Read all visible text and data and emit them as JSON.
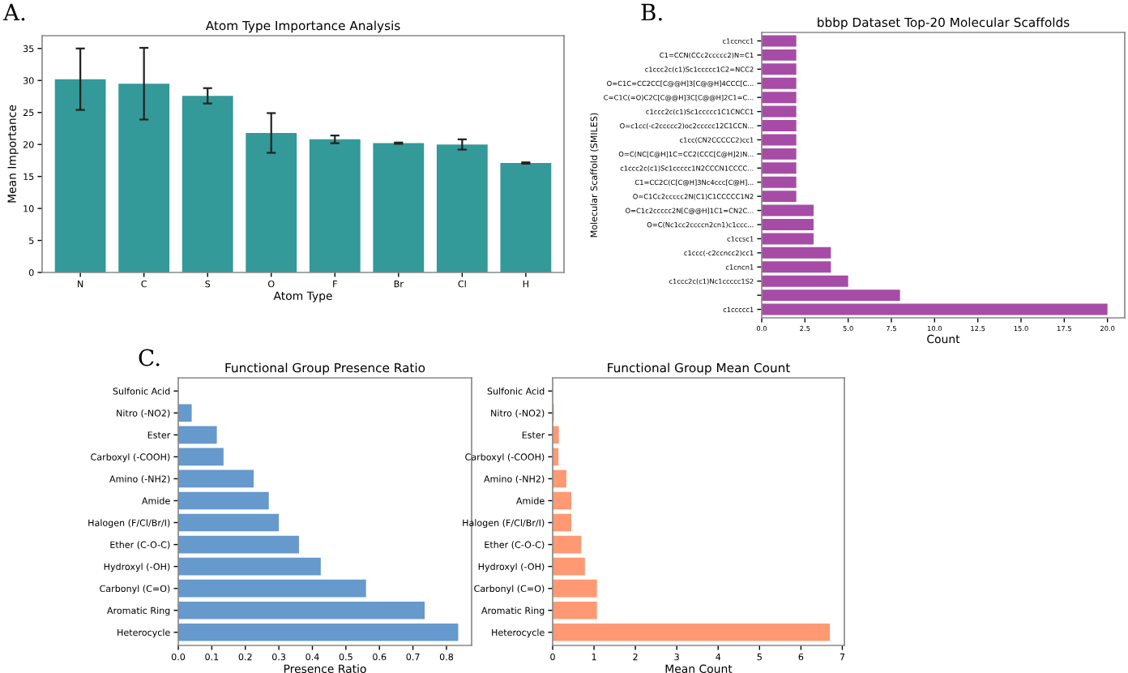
{
  "chart_data": [
    {
      "type": "bar",
      "title": "Atom Type Importance Analysis",
      "xlabel": "Atom Type",
      "ylabel": "Mean Importance",
      "annotations": [
        "A."
      ],
      "categories": [
        "N",
        "C",
        "S",
        "O",
        "F",
        "Br",
        "Cl",
        "H"
      ],
      "values": [
        30.2,
        29.5,
        27.6,
        21.8,
        20.8,
        20.2,
        20.0,
        17.1
      ],
      "errors": [
        4.8,
        5.6,
        1.2,
        3.1,
        0.6,
        0.1,
        0.8,
        0.1
      ],
      "color": "#339999",
      "ylim": [
        0,
        37
      ],
      "yticks": [
        0,
        5,
        10,
        15,
        20,
        25,
        30,
        35
      ],
      "grid": false
    },
    {
      "type": "bar",
      "orientation": "horizontal",
      "title": "bbbp Dataset Top-20 Molecular Scaffolds",
      "xlabel": "Count",
      "ylabel": "Molecular Scaffold (SMILES)",
      "annotations": [
        "B."
      ],
      "categories": [
        "c1ccncc1",
        "C1=CCN(CCc2ccccc2)N=C1",
        "c1ccc2c(c1)Sc1ccccc1C2=NCC2",
        "O=C1C=CC2CC[C@@H]3[C@@H]4CCC[C...",
        "C=C1C(=O)C2C[C@@H]3C[C@@H]2C1=C...",
        "c1ccc2c(c1)Sc1ccccc1C1CNCC1",
        "O=c1cc(-c2ccccc2)oc2ccccc12C1CCN...",
        "c1cc(CN2CCCCC2)cc1",
        "O=C(NC[C@H]1C=CC2(CCC[C@H]2)N...",
        "c1ccc2c(c1)Sc1ccccc1N2CCCN1CCCC...",
        "C1=CC2C(C[C@H]3Nc4ccc[C@H]...",
        "O=C1Cc2ccccc2N(C1)C1CCCCC1N2",
        "O=C1c2ccccc2N[C@@H]1C1=CN2C...",
        "O=C(Nc1cc2ccccn2cn1)c1ccc...",
        "c1ccsc1",
        "c1ccc(-c2ccncc2)cc1",
        "c1cncn1",
        "c1ccc2c(c1)Nc1ccccc1S2",
        null,
        "c1ccccc1"
      ],
      "values": [
        2,
        2,
        2,
        2,
        2,
        2,
        2,
        2,
        2,
        2,
        2,
        2,
        3,
        3,
        3,
        4,
        4,
        5,
        8,
        20
      ],
      "color": "#a64ca6",
      "xlim": [
        0,
        21
      ],
      "xticks": [
        {
          "value": 0,
          "label": "0.0"
        },
        2.5,
        {
          "value": 5,
          "label": "5.0"
        },
        7.5,
        {
          "value": 10,
          "label": "10.0"
        },
        12.5,
        {
          "value": 15,
          "label": "15.0"
        },
        17.5,
        {
          "value": 20,
          "label": "20.0"
        }
      ],
      "grid": false
    },
    {
      "type": "bar",
      "orientation": "horizontal",
      "title": "Functional Group Presence Ratio",
      "xlabel": "Presence Ratio",
      "annotations": [
        "C."
      ],
      "categories": [
        "Sulfonic Acid",
        "Nitro (-NO2)",
        "Ester",
        "Carboxyl (-COOH)",
        "Amino (-NH2)",
        "Amide",
        "Halogen (F/Cl/Br/I)",
        "Ether (C-O-C)",
        "Hydroxyl (-OH)",
        "Carbonyl (C=O)",
        "Aromatic Ring",
        "Heterocycle"
      ],
      "values": [
        0,
        0.04,
        0.115,
        0.135,
        0.225,
        0.27,
        0.3,
        0.36,
        0.425,
        0.56,
        0.735,
        0.835
      ],
      "color": "#6699cc",
      "xlim": [
        0,
        0.875
      ],
      "xticks": [
        {
          "value": 0,
          "label": "0.0"
        },
        0.1,
        0.2,
        0.3,
        0.4,
        0.5,
        0.6,
        0.7,
        0.8
      ],
      "grid": false
    },
    {
      "type": "bar",
      "orientation": "horizontal",
      "title": "Functional Group Mean Count",
      "xlabel": "Mean Count",
      "categories": [
        "Sulfonic Acid",
        "Nitro (-NO2)",
        "Ester",
        "Carboxyl (-COOH)",
        "Amino (-NH2)",
        "Amide",
        "Halogen (F/Cl/Br/I)",
        "Ether (C-O-C)",
        "Hydroxyl (-OH)",
        "Carbonyl (C=O)",
        "Aromatic Ring",
        "Heterocycle"
      ],
      "values": [
        0,
        0.03,
        0.15,
        0.14,
        0.33,
        0.45,
        0.45,
        0.69,
        0.78,
        1.07,
        1.07,
        6.7
      ],
      "color": "#ff9973",
      "xlim": [
        0,
        7.05
      ],
      "xticks": [
        0,
        1,
        2,
        3,
        4,
        5,
        6,
        7
      ],
      "grid": false
    }
  ]
}
